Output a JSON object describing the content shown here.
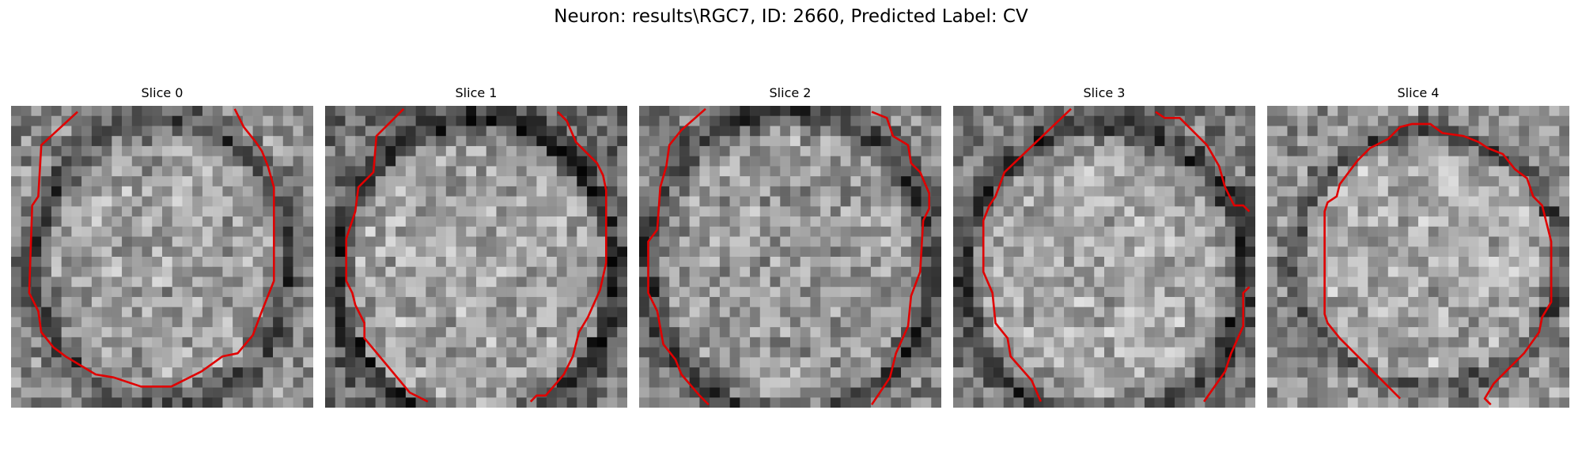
{
  "figure": {
    "title": "Neuron: results\\RGC7, ID: 2660, Predicted Label: CV",
    "contour_color": "#e00000"
  },
  "panels": [
    {
      "title": "Slice 0",
      "center": [
        0.5,
        0.52
      ],
      "radius": [
        0.4,
        0.45
      ],
      "ring": 0.12,
      "inner_mean": 0.62,
      "outer_mean": 0.55,
      "seed": 11,
      "contour": [
        [
          0.22,
          0.02
        ],
        [
          0.1,
          0.13
        ],
        [
          0.09,
          0.3
        ],
        [
          0.07,
          0.33
        ],
        [
          0.06,
          0.62
        ],
        [
          0.09,
          0.68
        ],
        [
          0.1,
          0.75
        ],
        [
          0.14,
          0.8
        ],
        [
          0.18,
          0.83
        ],
        [
          0.28,
          0.89
        ],
        [
          0.34,
          0.9
        ],
        [
          0.43,
          0.93
        ],
        [
          0.53,
          0.93
        ],
        [
          0.63,
          0.88
        ],
        [
          0.7,
          0.83
        ],
        [
          0.75,
          0.82
        ],
        [
          0.8,
          0.76
        ],
        [
          0.83,
          0.68
        ],
        [
          0.87,
          0.58
        ],
        [
          0.87,
          0.27
        ],
        [
          0.85,
          0.2
        ],
        [
          0.83,
          0.15
        ],
        [
          0.81,
          0.12
        ],
        [
          0.77,
          0.07
        ],
        [
          0.74,
          0.01
        ]
      ]
    },
    {
      "title": "Slice 1",
      "center": [
        0.5,
        0.55
      ],
      "radius": [
        0.43,
        0.48
      ],
      "ring": 0.1,
      "inner_mean": 0.64,
      "outer_mean": 0.42,
      "seed": 23,
      "contour": [
        [
          0.26,
          0.01
        ],
        [
          0.17,
          0.1
        ],
        [
          0.16,
          0.22
        ],
        [
          0.11,
          0.27
        ],
        [
          0.1,
          0.35
        ],
        [
          0.07,
          0.44
        ],
        [
          0.07,
          0.58
        ],
        [
          0.09,
          0.62
        ],
        [
          0.1,
          0.66
        ],
        [
          0.13,
          0.72
        ],
        [
          0.13,
          0.77
        ],
        [
          0.28,
          0.95
        ],
        [
          0.34,
          0.98
        ]
      ],
      "contour2": [
        [
          0.68,
          0.98
        ],
        [
          0.7,
          0.96
        ],
        [
          0.73,
          0.96
        ],
        [
          0.79,
          0.89
        ],
        [
          0.82,
          0.83
        ],
        [
          0.84,
          0.75
        ],
        [
          0.87,
          0.7
        ],
        [
          0.91,
          0.61
        ],
        [
          0.93,
          0.52
        ],
        [
          0.93,
          0.28
        ],
        [
          0.92,
          0.23
        ],
        [
          0.9,
          0.19
        ],
        [
          0.86,
          0.15
        ],
        [
          0.83,
          0.12
        ],
        [
          0.8,
          0.05
        ],
        [
          0.77,
          0.02
        ]
      ]
    },
    {
      "title": "Slice 2",
      "center": [
        0.5,
        0.52
      ],
      "radius": [
        0.45,
        0.48
      ],
      "ring": 0.1,
      "inner_mean": 0.6,
      "outer_mean": 0.5,
      "seed": 37,
      "contour": [
        [
          0.22,
          0.01
        ],
        [
          0.14,
          0.08
        ],
        [
          0.1,
          0.13
        ],
        [
          0.09,
          0.2
        ],
        [
          0.07,
          0.27
        ],
        [
          0.06,
          0.41
        ],
        [
          0.03,
          0.45
        ],
        [
          0.03,
          0.62
        ],
        [
          0.06,
          0.68
        ],
        [
          0.08,
          0.79
        ],
        [
          0.12,
          0.84
        ],
        [
          0.14,
          0.89
        ],
        [
          0.2,
          0.96
        ],
        [
          0.23,
          0.99
        ]
      ],
      "contour2": [
        [
          0.77,
          0.99
        ],
        [
          0.83,
          0.9
        ],
        [
          0.85,
          0.82
        ],
        [
          0.89,
          0.73
        ],
        [
          0.9,
          0.63
        ],
        [
          0.93,
          0.55
        ],
        [
          0.94,
          0.38
        ],
        [
          0.96,
          0.34
        ],
        [
          0.96,
          0.29
        ],
        [
          0.93,
          0.22
        ],
        [
          0.9,
          0.19
        ],
        [
          0.89,
          0.13
        ],
        [
          0.84,
          0.1
        ],
        [
          0.82,
          0.04
        ],
        [
          0.77,
          0.02
        ]
      ]
    },
    {
      "title": "Slice 3",
      "center": [
        0.5,
        0.55
      ],
      "radius": [
        0.44,
        0.45
      ],
      "ring": 0.12,
      "inner_mean": 0.66,
      "outer_mean": 0.48,
      "seed": 53,
      "contour": [
        [
          0.39,
          0.01
        ],
        [
          0.17,
          0.22
        ],
        [
          0.14,
          0.3
        ],
        [
          0.12,
          0.33
        ],
        [
          0.1,
          0.38
        ],
        [
          0.1,
          0.55
        ],
        [
          0.13,
          0.62
        ],
        [
          0.14,
          0.72
        ],
        [
          0.18,
          0.77
        ],
        [
          0.19,
          0.83
        ],
        [
          0.26,
          0.91
        ],
        [
          0.29,
          0.98
        ]
      ],
      "contour2": [
        [
          0.83,
          0.98
        ],
        [
          0.9,
          0.88
        ],
        [
          0.92,
          0.82
        ],
        [
          0.96,
          0.73
        ],
        [
          0.96,
          0.62
        ],
        [
          0.98,
          0.6
        ]
      ],
      "contour3": [
        [
          0.67,
          0.02
        ],
        [
          0.7,
          0.04
        ],
        [
          0.75,
          0.04
        ],
        [
          0.84,
          0.13
        ],
        [
          0.88,
          0.2
        ],
        [
          0.9,
          0.27
        ],
        [
          0.93,
          0.33
        ],
        [
          0.96,
          0.33
        ],
        [
          0.98,
          0.35
        ]
      ]
    },
    {
      "title": "Slice 4",
      "center": [
        0.53,
        0.51
      ],
      "radius": [
        0.42,
        0.4
      ],
      "ring": 0.09,
      "inner_mean": 0.66,
      "outer_mean": 0.56,
      "seed": 71,
      "contour": [
        [
          0.44,
          0.97
        ],
        [
          0.38,
          0.91
        ],
        [
          0.3,
          0.83
        ],
        [
          0.24,
          0.77
        ],
        [
          0.2,
          0.72
        ],
        [
          0.19,
          0.69
        ],
        [
          0.19,
          0.35
        ],
        [
          0.2,
          0.32
        ],
        [
          0.23,
          0.3
        ],
        [
          0.24,
          0.26
        ],
        [
          0.27,
          0.22
        ],
        [
          0.3,
          0.18
        ],
        [
          0.34,
          0.14
        ],
        [
          0.4,
          0.11
        ],
        [
          0.44,
          0.07
        ],
        [
          0.48,
          0.06
        ],
        [
          0.54,
          0.06
        ],
        [
          0.58,
          0.09
        ],
        [
          0.65,
          0.1
        ],
        [
          0.7,
          0.12
        ],
        [
          0.73,
          0.14
        ],
        [
          0.78,
          0.16
        ],
        [
          0.82,
          0.21
        ],
        [
          0.86,
          0.24
        ],
        [
          0.88,
          0.3
        ],
        [
          0.91,
          0.33
        ],
        [
          0.94,
          0.45
        ],
        [
          0.94,
          0.65
        ],
        [
          0.91,
          0.7
        ],
        [
          0.9,
          0.75
        ],
        [
          0.85,
          0.82
        ],
        [
          0.81,
          0.86
        ],
        [
          0.75,
          0.92
        ],
        [
          0.72,
          0.97
        ],
        [
          0.74,
          0.99
        ]
      ]
    }
  ]
}
